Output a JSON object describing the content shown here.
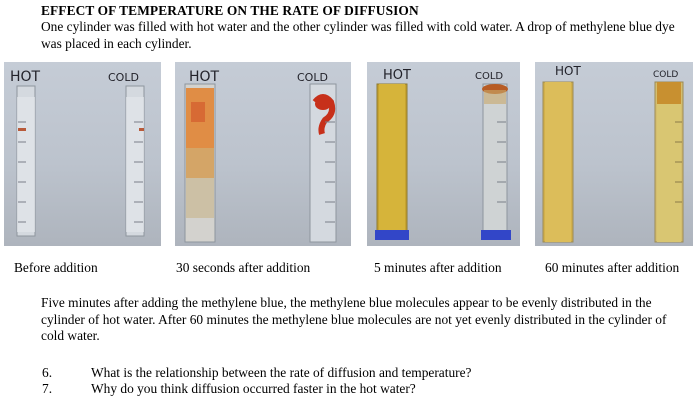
{
  "document": {
    "title": "EFFECT OF TEMPERATURE ON THE RATE OF DIFFUSION",
    "intro": "One cylinder was filled with hot water and the other cylinder was filled with cold water. A drop of methylene blue dye was placed in each cylinder.",
    "photos": [
      {
        "hot_label": "HOT",
        "cold_label": "COLD",
        "caption": "Before addition"
      },
      {
        "hot_label": "HOT",
        "cold_label": "COLD",
        "caption": "30 seconds after addition"
      },
      {
        "hot_label": "HOT",
        "cold_label": "COLD",
        "caption": "5 minutes after addition"
      },
      {
        "hot_label": "HOT",
        "cold_label": "COLD",
        "caption": "60 minutes after addition"
      }
    ],
    "paragraph": "Five minutes after adding the methylene blue, the methylene blue molecules appear to be evenly distributed in the cylinder of hot water. After 60 minutes the methylene blue molecules are not yet evenly distributed in the cylinder of cold water.",
    "questions": [
      {
        "number": "6.",
        "text": "What is the relationship between the rate of diffusion and temperature?"
      },
      {
        "number": "7.",
        "text": "Why do you think diffusion occurred faster in the hot water?"
      }
    ]
  }
}
